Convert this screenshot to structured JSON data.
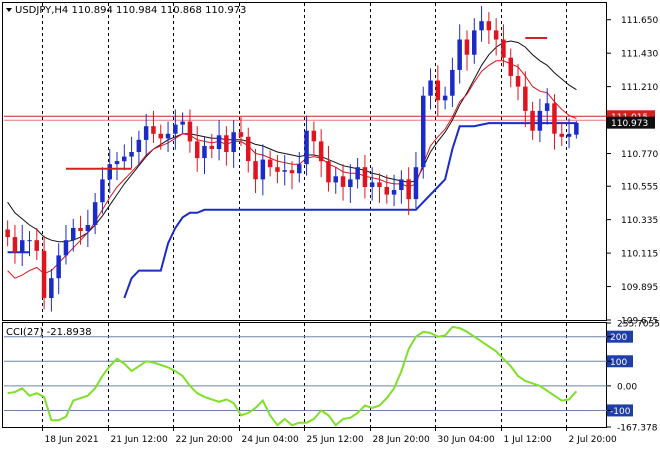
{
  "header": {
    "symbol_line": "USDJPY,H4  110.894 110.984 110.868 110.973"
  },
  "indicator": {
    "label": "CCI(27) -21.8938"
  },
  "colors": {
    "bull_candle": "#1a2bc8",
    "bear_candle": "#e0141e",
    "fast_ma": "#e0141e",
    "slow_ma": "#101010",
    "trail_line": "#1a2bc8",
    "h_level": "#d62020",
    "cci_line": "#7fe02a",
    "price_tag_bg": "#101010",
    "level_tag_bg": "#d62020"
  },
  "chart_data": [
    {
      "type": "candlestick",
      "symbol": "USDJPY",
      "timeframe": "H4",
      "ohlc_last": {
        "open": 110.894,
        "high": 110.984,
        "low": 110.868,
        "close": 110.973
      },
      "y_ticks": [
        "111.650",
        "111.430",
        "111.210",
        "110.770",
        "110.555",
        "110.335",
        "110.115",
        "109.895",
        "109.675"
      ],
      "ylim": [
        109.675,
        111.76
      ],
      "price_tag": "110.973",
      "level_tag": "111.015",
      "x_tick_labels": [
        "18 Jun 2021",
        "21 Jun 12:00",
        "22 Jun 20:00",
        "24 Jun 04:00",
        "25 Jun 12:00",
        "28 Jun 20:00",
        "30 Jun 04:00",
        "1 Jul 12:00",
        "2 Jul 20:00"
      ],
      "closes": [
        110.22,
        110.12,
        110.2,
        110.2,
        110.13,
        109.82,
        109.95,
        110.1,
        110.2,
        110.28,
        110.26,
        110.3,
        110.45,
        110.6,
        110.7,
        110.72,
        110.75,
        110.78,
        110.86,
        110.95,
        110.9,
        110.87,
        110.9,
        110.96,
        110.98,
        110.85,
        110.74,
        110.82,
        110.8,
        110.89,
        110.78,
        110.91,
        110.88,
        110.72,
        110.6,
        110.73,
        110.68,
        110.65,
        110.66,
        110.64,
        110.7,
        110.92,
        110.85,
        110.72,
        110.58,
        110.62,
        110.55,
        110.6,
        110.68,
        110.55,
        110.58,
        110.55,
        110.5,
        110.53,
        110.6,
        110.47,
        110.68,
        111.15,
        111.25,
        111.12,
        111.15,
        111.32,
        111.52,
        111.42,
        111.58,
        111.64,
        111.58,
        111.52,
        111.4,
        111.28,
        111.21,
        111.05,
        110.92,
        111.05,
        111.1,
        110.9,
        110.88,
        110.9,
        110.973
      ],
      "fast_ma": [
        110.0,
        109.95,
        109.97,
        110.0,
        110.02,
        109.98,
        110.0,
        110.05,
        110.1,
        110.15,
        110.2,
        110.25,
        110.32,
        110.4,
        110.48,
        110.55,
        110.6,
        110.65,
        110.7,
        110.76,
        110.8,
        110.82,
        110.84,
        110.87,
        110.9,
        110.89,
        110.86,
        110.85,
        110.84,
        110.85,
        110.83,
        110.85,
        110.85,
        110.82,
        110.77,
        110.76,
        110.74,
        110.72,
        110.71,
        110.7,
        110.7,
        110.74,
        110.75,
        110.74,
        110.7,
        110.68,
        110.65,
        110.64,
        110.64,
        110.62,
        110.61,
        110.6,
        110.58,
        110.57,
        110.57,
        110.55,
        110.57,
        110.7,
        110.82,
        110.88,
        110.93,
        111.01,
        111.11,
        111.16,
        111.24,
        111.31,
        111.35,
        111.38,
        111.38,
        111.36,
        111.34,
        111.28,
        111.21,
        111.18,
        111.17,
        111.11,
        111.06,
        111.02,
        111.0
      ],
      "slow_ma": [
        110.45,
        110.38,
        110.34,
        110.3,
        110.27,
        110.22,
        110.2,
        110.19,
        110.19,
        110.2,
        110.22,
        110.25,
        110.3,
        110.36,
        110.43,
        110.5,
        110.57,
        110.63,
        110.69,
        110.75,
        110.8,
        110.83,
        110.86,
        110.88,
        110.9,
        110.9,
        110.89,
        110.88,
        110.87,
        110.87,
        110.86,
        110.86,
        110.86,
        110.85,
        110.83,
        110.82,
        110.8,
        110.78,
        110.77,
        110.76,
        110.75,
        110.76,
        110.76,
        110.75,
        110.73,
        110.71,
        110.69,
        110.68,
        110.67,
        110.66,
        110.64,
        110.63,
        110.61,
        110.6,
        110.59,
        110.58,
        110.59,
        110.68,
        110.78,
        110.85,
        110.91,
        110.99,
        111.09,
        111.17,
        111.26,
        111.35,
        111.42,
        111.47,
        111.5,
        111.51,
        111.5,
        111.47,
        111.42,
        111.38,
        111.35,
        111.3,
        111.26,
        111.22,
        111.19
      ],
      "trail_line": [
        110.12,
        110.12,
        110.12,
        110.12,
        null,
        null,
        null,
        null,
        null,
        null,
        null,
        null,
        null,
        null,
        null,
        null,
        109.82,
        109.95,
        110.0,
        110.0,
        110.0,
        110.0,
        110.18,
        110.28,
        110.35,
        110.38,
        110.38,
        110.4,
        110.4,
        110.4,
        110.4,
        110.4,
        110.4,
        110.4,
        110.4,
        110.4,
        110.4,
        110.4,
        110.4,
        110.4,
        110.4,
        110.4,
        110.4,
        110.4,
        110.4,
        110.4,
        110.4,
        110.4,
        110.4,
        110.4,
        110.4,
        110.4,
        110.4,
        110.4,
        110.4,
        110.4,
        110.4,
        110.45,
        110.5,
        110.55,
        110.6,
        110.8,
        110.95,
        110.95,
        110.95,
        110.96,
        110.97,
        110.97,
        110.97,
        110.97,
        110.97,
        110.97,
        110.97,
        110.97,
        110.97,
        110.97,
        110.97,
        110.97,
        110.97
      ],
      "level_line": 111.015,
      "segments": [
        {
          "from_index": 8,
          "to_index": 17,
          "value": 110.67
        },
        {
          "from_index": 71,
          "to_index": 74,
          "value": 111.53
        }
      ]
    },
    {
      "type": "line",
      "name": "CCI(27)",
      "last_value": -21.8938,
      "y_ticks": [
        "255.7055",
        "200",
        "100",
        "0.00",
        "-100",
        "-167.378"
      ],
      "ylim": [
        -167.378,
        255.7055
      ],
      "levels": [
        200,
        100,
        0,
        -100
      ],
      "values": [
        -30,
        -25,
        -10,
        -40,
        -30,
        -45,
        -140,
        -140,
        -125,
        -60,
        -50,
        -40,
        -10,
        40,
        80,
        110,
        90,
        60,
        80,
        100,
        95,
        85,
        75,
        60,
        40,
        0,
        -30,
        -45,
        -55,
        -65,
        -55,
        -70,
        -120,
        -110,
        -90,
        -60,
        -120,
        -160,
        -135,
        -160,
        -150,
        -150,
        -135,
        -100,
        -120,
        -160,
        -135,
        -130,
        -110,
        -80,
        -90,
        -80,
        -50,
        -10,
        60,
        150,
        200,
        220,
        215,
        200,
        205,
        240,
        235,
        220,
        200,
        180,
        160,
        140,
        110,
        80,
        40,
        20,
        10,
        0,
        -20,
        -40,
        -60,
        -55,
        -22
      ]
    }
  ]
}
